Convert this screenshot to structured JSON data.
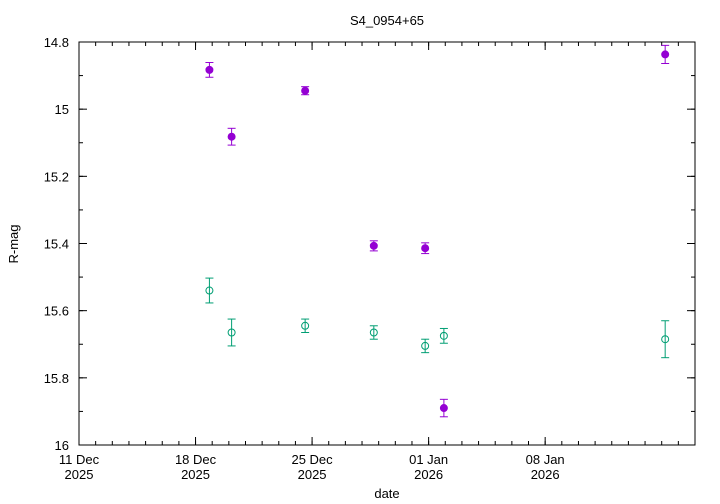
{
  "chart_data": {
    "type": "scatter",
    "title": "S4_0954+65",
    "xlabel": "date",
    "ylabel": "R-mag",
    "xlim": [
      "2025-12-11",
      "2026-01-17"
    ],
    "ylim": [
      14.8,
      16.0
    ],
    "y_inverted": true,
    "grid": false,
    "legend": "none",
    "x_ticks": [
      {
        "date": "2025-12-11",
        "line1": "11 Dec",
        "line2": "2025"
      },
      {
        "date": "2025-12-18",
        "line1": "18 Dec",
        "line2": "2025"
      },
      {
        "date": "2025-12-25",
        "line1": "25 Dec",
        "line2": "2025"
      },
      {
        "date": "2026-01-01",
        "line1": "01 Jan",
        "line2": "2026"
      },
      {
        "date": "2026-01-08",
        "line1": "08 Jan",
        "line2": "2026"
      }
    ],
    "y_ticks": [
      "14.8",
      "15",
      "15.2",
      "15.4",
      "15.6",
      "15.8",
      "16"
    ],
    "series": [
      {
        "marker": "filled-circle",
        "color": "#9400d3",
        "points": [
          {
            "x": "2025-12-18 20:00",
            "y": 14.883,
            "err": 0.022
          },
          {
            "x": "2025-12-20 04:00",
            "y": 15.082,
            "err": 0.025
          },
          {
            "x": "2025-12-24 14:00",
            "y": 14.945,
            "err": 0.012
          },
          {
            "x": "2025-12-28 17:00",
            "y": 15.407,
            "err": 0.015
          },
          {
            "x": "2025-12-31 19:00",
            "y": 15.414,
            "err": 0.016
          },
          {
            "x": "2026-01-01 22:00",
            "y": 15.89,
            "err": 0.026
          },
          {
            "x": "2026-01-15 05:00",
            "y": 14.837,
            "err": 0.027
          }
        ]
      },
      {
        "marker": "open-circle",
        "color": "#009e73",
        "points": [
          {
            "x": "2025-12-18 20:00",
            "y": 15.54,
            "err": 0.037
          },
          {
            "x": "2025-12-20 04:00",
            "y": 15.665,
            "err": 0.04
          },
          {
            "x": "2025-12-24 14:00",
            "y": 15.645,
            "err": 0.02
          },
          {
            "x": "2025-12-28 17:00",
            "y": 15.665,
            "err": 0.02
          },
          {
            "x": "2025-12-31 19:00",
            "y": 15.705,
            "err": 0.02
          },
          {
            "x": "2026-01-01 22:00",
            "y": 15.675,
            "err": 0.022
          },
          {
            "x": "2026-01-15 05:00",
            "y": 15.685,
            "err": 0.055
          }
        ]
      }
    ]
  }
}
